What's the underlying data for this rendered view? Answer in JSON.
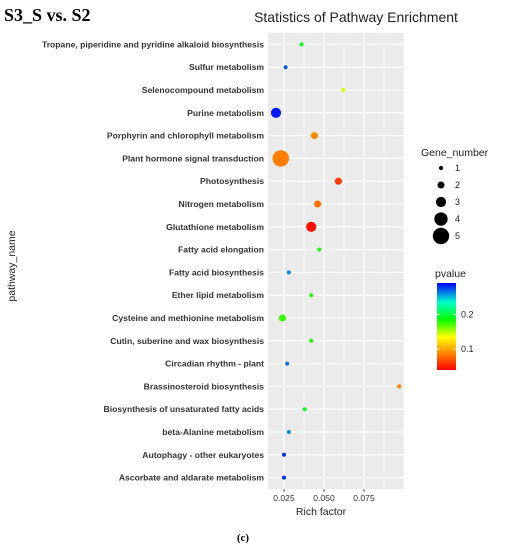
{
  "chart_data": {
    "type": "scatter",
    "panel_label": "S3_S vs. S2",
    "title": "Statistics of Pathway Enrichment",
    "xlabel": "Rich factor",
    "ylabel": "pathway_name",
    "caption": "(c)",
    "xlim": [
      0.015,
      0.1
    ],
    "xticks": [
      0.025,
      0.05,
      0.075
    ],
    "xtick_labels": [
      "0.025",
      "0.050",
      "0.075"
    ],
    "grid": true,
    "categories": [
      "Tropane, piperidine and pyridine alkaloid biosynthesis",
      "Sulfur metabolism",
      "Selenocompound metabolism",
      "Purine metabolism",
      "Porphyrin and chlorophyll metabolism",
      "Plant hormone signal transduction",
      "Photosynthesis",
      "Nitrogen metabolism",
      "Glutathione metabolism",
      "Fatty acid elongation",
      "Fatty acid biosynthesis",
      "Ether lipid metabolism",
      "Cysteine and methionine metabolism",
      "Cutin, suberine and wax biosynthesis",
      "Circadian rhythm - plant",
      "Brassinosteroid biosynthesis",
      "Biosynthesis of unsaturated fatty acids",
      "beta-Alanine metabolism",
      "Autophagy - other eukaryotes",
      "Ascorbate and aldarate metabolism"
    ],
    "points": [
      {
        "category": "Tropane, piperidine and pyridine alkaloid biosynthesis",
        "rich_factor": 0.036,
        "gene_number": 1,
        "pvalue": 0.19
      },
      {
        "category": "Sulfur metabolism",
        "rich_factor": 0.026,
        "gene_number": 1,
        "pvalue": 0.27
      },
      {
        "category": "Selenocompound metabolism",
        "rich_factor": 0.062,
        "gene_number": 1,
        "pvalue": 0.145
      },
      {
        "category": "Purine metabolism",
        "rich_factor": 0.02,
        "gene_number": 3,
        "pvalue": 0.285
      },
      {
        "category": "Porphyrin and chlorophyll metabolism",
        "rich_factor": 0.044,
        "gene_number": 2,
        "pvalue": 0.09
      },
      {
        "category": "Plant hormone signal transduction",
        "rich_factor": 0.023,
        "gene_number": 5,
        "pvalue": 0.085
      },
      {
        "category": "Photosynthesis",
        "rich_factor": 0.059,
        "gene_number": 2,
        "pvalue": 0.06
      },
      {
        "category": "Nitrogen metabolism",
        "rich_factor": 0.046,
        "gene_number": 2,
        "pvalue": 0.08
      },
      {
        "category": "Glutathione metabolism",
        "rich_factor": 0.042,
        "gene_number": 3,
        "pvalue": 0.045
      },
      {
        "category": "Fatty acid elongation",
        "rich_factor": 0.047,
        "gene_number": 1,
        "pvalue": 0.18
      },
      {
        "category": "Fatty acid biosynthesis",
        "rich_factor": 0.028,
        "gene_number": 1,
        "pvalue": 0.26
      },
      {
        "category": "Ether lipid metabolism",
        "rich_factor": 0.042,
        "gene_number": 1,
        "pvalue": 0.18
      },
      {
        "category": "Cysteine and methionine metabolism",
        "rich_factor": 0.024,
        "gene_number": 2,
        "pvalue": 0.175
      },
      {
        "category": "Cutin, suberine and wax biosynthesis",
        "rich_factor": 0.042,
        "gene_number": 1,
        "pvalue": 0.18
      },
      {
        "category": "Circadian rhythm - plant",
        "rich_factor": 0.027,
        "gene_number": 1,
        "pvalue": 0.265
      },
      {
        "category": "Brassinosteroid biosynthesis",
        "rich_factor": 0.097,
        "gene_number": 1,
        "pvalue": 0.085
      },
      {
        "category": "Biosynthesis of unsaturated fatty acids",
        "rich_factor": 0.038,
        "gene_number": 1,
        "pvalue": 0.19
      },
      {
        "category": "beta-Alanine metabolism",
        "rich_factor": 0.028,
        "gene_number": 1,
        "pvalue": 0.26
      },
      {
        "category": "Autophagy - other eukaryotes",
        "rich_factor": 0.025,
        "gene_number": 1,
        "pvalue": 0.28
      },
      {
        "category": "Ascorbate and aldarate metabolism",
        "rich_factor": 0.025,
        "gene_number": 1,
        "pvalue": 0.28
      }
    ],
    "size_legend": {
      "title": "Gene_number",
      "values": [
        1,
        2,
        3,
        4,
        5
      ],
      "labels": [
        "1",
        "2",
        "3",
        "4",
        "5"
      ]
    },
    "color_legend": {
      "title": "pvalue",
      "range": [
        0.04,
        0.29
      ],
      "ticks": [
        0.1,
        0.2
      ],
      "tick_labels": [
        "0.1",
        "0.2"
      ],
      "colors_low_to_high": [
        "#ff0000",
        "#ff8c00",
        "#ffff00",
        "#00ff00",
        "#00ffcc",
        "#0000ff"
      ]
    },
    "legend_placement": "right"
  }
}
